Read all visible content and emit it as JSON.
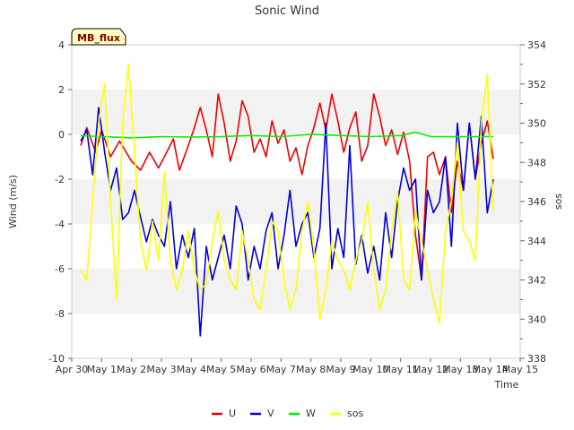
{
  "chart_data": {
    "type": "line",
    "title": "Sonic Wind",
    "xlabel": "Time",
    "ylabel": "Wind (m/s)",
    "ylabel_right": "sos",
    "badge": "MB_flux",
    "x_unit": "days since Apr 30",
    "x_ticks": [
      {
        "x": 0,
        "label": "Apr 30"
      },
      {
        "x": 1,
        "label": "May 1"
      },
      {
        "x": 2,
        "label": "May 2"
      },
      {
        "x": 3,
        "label": "May 3"
      },
      {
        "x": 4,
        "label": "May 4"
      },
      {
        "x": 5,
        "label": "May 5"
      },
      {
        "x": 6,
        "label": "May 6"
      },
      {
        "x": 7,
        "label": "May 7"
      },
      {
        "x": 8,
        "label": "May 8"
      },
      {
        "x": 9,
        "label": "May 9"
      },
      {
        "x": 10,
        "label": "May 10"
      },
      {
        "x": 11,
        "label": "May 11"
      },
      {
        "x": 12,
        "label": "May 12"
      },
      {
        "x": 13,
        "label": "May 13"
      },
      {
        "x": 14,
        "label": "May 14"
      },
      {
        "x": 15,
        "label": "May 15"
      }
    ],
    "xlim": [
      0,
      15
    ],
    "ylim": [
      -10,
      4
    ],
    "y_ticks": [
      -10,
      -8,
      -6,
      -4,
      -2,
      0,
      2,
      4
    ],
    "y2lim": [
      338,
      354
    ],
    "y2_ticks": [
      338,
      340,
      342,
      344,
      346,
      348,
      350,
      352,
      354
    ],
    "grid": "horizontal bands",
    "legend_position": "bottom",
    "series": [
      {
        "name": "U",
        "color": "#ee0000",
        "axis": "left",
        "x": [
          0.3,
          0.5,
          0.8,
          1.0,
          1.3,
          1.6,
          2.0,
          2.3,
          2.6,
          2.9,
          3.1,
          3.4,
          3.6,
          3.9,
          4.1,
          4.3,
          4.5,
          4.7,
          4.9,
          5.1,
          5.3,
          5.5,
          5.7,
          5.9,
          6.1,
          6.3,
          6.5,
          6.7,
          6.9,
          7.1,
          7.3,
          7.5,
          7.7,
          7.9,
          8.1,
          8.3,
          8.5,
          8.7,
          8.9,
          9.1,
          9.3,
          9.5,
          9.7,
          9.9,
          10.1,
          10.3,
          10.5,
          10.7,
          10.9,
          11.1,
          11.3,
          11.5,
          11.7,
          11.9,
          12.1,
          12.3,
          12.5,
          12.7,
          12.9,
          13.1,
          13.3,
          13.5,
          13.7,
          13.9,
          14.1
        ],
        "y": [
          -0.5,
          0.3,
          -0.8,
          0.2,
          -1.0,
          -0.3,
          -1.2,
          -1.6,
          -0.8,
          -1.5,
          -1.0,
          -0.2,
          -1.6,
          -0.5,
          0.3,
          1.2,
          0.2,
          -1.0,
          1.8,
          0.5,
          -1.2,
          -0.3,
          1.5,
          0.8,
          -0.8,
          -0.2,
          -1.0,
          0.6,
          -0.4,
          0.2,
          -1.2,
          -0.6,
          -1.8,
          -0.5,
          0.3,
          1.4,
          0.2,
          1.8,
          0.6,
          -0.8,
          0.3,
          1.0,
          -1.2,
          -0.5,
          1.8,
          0.8,
          -0.5,
          0.2,
          -0.9,
          0.1,
          -1.2,
          -4.5,
          -6.5,
          -1.0,
          -0.8,
          -1.8,
          -1.0,
          -3.5,
          -1.2,
          -2.5,
          0.5,
          -2.0,
          -0.4,
          0.6,
          -1.1
        ]
      },
      {
        "name": "V",
        "color": "#0000dd",
        "axis": "left",
        "x": [
          0.3,
          0.5,
          0.7,
          0.9,
          1.1,
          1.3,
          1.5,
          1.7,
          1.9,
          2.1,
          2.3,
          2.5,
          2.7,
          2.9,
          3.1,
          3.3,
          3.5,
          3.7,
          3.9,
          4.1,
          4.3,
          4.5,
          4.7,
          4.9,
          5.1,
          5.3,
          5.5,
          5.7,
          5.9,
          6.1,
          6.3,
          6.5,
          6.7,
          6.9,
          7.1,
          7.3,
          7.5,
          7.7,
          7.9,
          8.1,
          8.3,
          8.5,
          8.7,
          8.9,
          9.1,
          9.3,
          9.5,
          9.7,
          9.9,
          10.1,
          10.3,
          10.5,
          10.7,
          10.9,
          11.1,
          11.3,
          11.5,
          11.7,
          11.9,
          12.1,
          12.3,
          12.5,
          12.7,
          12.9,
          13.1,
          13.3,
          13.5,
          13.7,
          13.9,
          14.1
        ],
        "y": [
          -0.3,
          0.2,
          -1.8,
          1.2,
          -0.8,
          -2.5,
          -1.5,
          -3.8,
          -3.5,
          -2.5,
          -3.7,
          -4.8,
          -3.8,
          -4.5,
          -5.0,
          -3.0,
          -6.0,
          -4.5,
          -5.5,
          -4.2,
          -9.0,
          -5.0,
          -6.5,
          -5.5,
          -4.5,
          -6.0,
          -3.2,
          -4.0,
          -6.5,
          -5.0,
          -6.0,
          -4.3,
          -3.5,
          -6.0,
          -4.5,
          -2.5,
          -5.0,
          -4.0,
          -3.5,
          -5.5,
          -4.2,
          0.5,
          -6.0,
          -4.2,
          -5.5,
          -0.5,
          -5.8,
          -4.5,
          -6.2,
          -5.0,
          -6.5,
          -3.5,
          -5.5,
          -3.0,
          -1.5,
          -2.5,
          -2.0,
          -6.5,
          -2.5,
          -3.5,
          -3.0,
          -1.0,
          -5.0,
          0.5,
          -2.5,
          0.5,
          -2.0,
          0.8,
          -3.5,
          -2.0
        ]
      },
      {
        "name": "W",
        "color": "#00ee00",
        "axis": "left",
        "x": [
          0.3,
          1.0,
          2.0,
          3.0,
          4.0,
          5.0,
          6.0,
          7.0,
          8.0,
          9.0,
          10.0,
          11.0,
          11.5,
          12.0,
          13.0,
          14.1
        ],
        "y": [
          -0.05,
          -0.1,
          -0.15,
          -0.1,
          -0.12,
          -0.1,
          -0.05,
          -0.1,
          0.0,
          -0.05,
          -0.1,
          -0.05,
          0.1,
          -0.1,
          -0.1,
          -0.1
        ]
      },
      {
        "name": "sos",
        "color": "#ffff00",
        "axis": "right",
        "x": [
          0.3,
          0.5,
          0.7,
          0.9,
          1.1,
          1.3,
          1.5,
          1.7,
          1.9,
          2.1,
          2.3,
          2.5,
          2.7,
          2.9,
          3.1,
          3.3,
          3.5,
          3.7,
          3.9,
          4.1,
          4.3,
          4.5,
          4.7,
          4.9,
          5.1,
          5.3,
          5.5,
          5.7,
          5.9,
          6.1,
          6.3,
          6.5,
          6.7,
          6.9,
          7.1,
          7.3,
          7.5,
          7.7,
          7.9,
          8.1,
          8.3,
          8.5,
          8.7,
          8.9,
          9.1,
          9.3,
          9.5,
          9.7,
          9.9,
          10.1,
          10.3,
          10.5,
          10.7,
          10.9,
          11.1,
          11.3,
          11.5,
          11.7,
          11.9,
          12.1,
          12.3,
          12.5,
          12.7,
          12.9,
          13.1,
          13.3,
          13.5,
          13.7,
          13.9,
          14.1
        ],
        "y": [
          342.5,
          342.0,
          346.0,
          350.0,
          352.0,
          346.0,
          341.0,
          350.0,
          353.0,
          348.5,
          344.0,
          342.5,
          345.0,
          343.0,
          347.5,
          343.0,
          341.5,
          342.5,
          344.5,
          342.5,
          341.5,
          341.8,
          344.0,
          345.5,
          343.0,
          342.0,
          341.5,
          344.5,
          343.0,
          341.0,
          340.5,
          342.5,
          345.0,
          344.5,
          342.0,
          340.5,
          341.5,
          344.5,
          346.0,
          343.5,
          340.0,
          341.5,
          344.0,
          343.0,
          342.5,
          341.5,
          343.0,
          344.0,
          346.0,
          342.5,
          340.5,
          341.5,
          344.5,
          346.5,
          342.0,
          341.5,
          345.5,
          344.0,
          342.5,
          341.0,
          339.8,
          344.5,
          346.0,
          349.0,
          344.5,
          344.0,
          343.0,
          350.0,
          352.5,
          345.5
        ]
      }
    ]
  }
}
